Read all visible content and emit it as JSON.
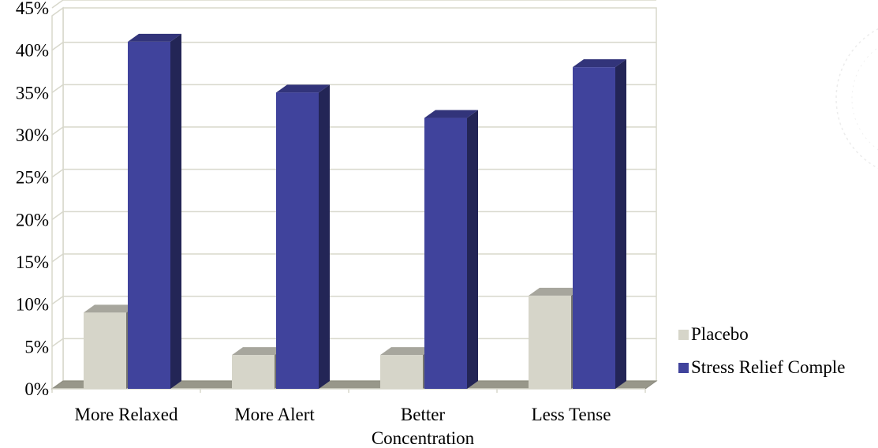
{
  "chart_data": {
    "type": "bar",
    "style": "3d-clustered-column",
    "categories": [
      "More Relaxed",
      "More Alert",
      "Better Concentration",
      "Less Tense"
    ],
    "category_lines": [
      [
        "More Relaxed"
      ],
      [
        "More Alert"
      ],
      [
        "Better",
        "Concentration"
      ],
      [
        "Less Tense"
      ]
    ],
    "series": [
      {
        "name": "Placebo",
        "values": [
          9,
          4,
          4,
          11
        ],
        "color": "#d6d5c9"
      },
      {
        "name": "Stress Relief Complex",
        "values": [
          41,
          35,
          32,
          38
        ],
        "color": "#40439c"
      }
    ],
    "legend_label_shown": [
      "Placebo",
      "Stress Relief Comple"
    ],
    "ylim": [
      0,
      45
    ],
    "yticks": [
      "0%",
      "5%",
      "10%",
      "15%",
      "20%",
      "25%",
      "30%",
      "35%",
      "40%",
      "45%"
    ],
    "grid": true,
    "legend_position": "right-bottom",
    "title": "",
    "xlabel": "",
    "ylabel": ""
  }
}
